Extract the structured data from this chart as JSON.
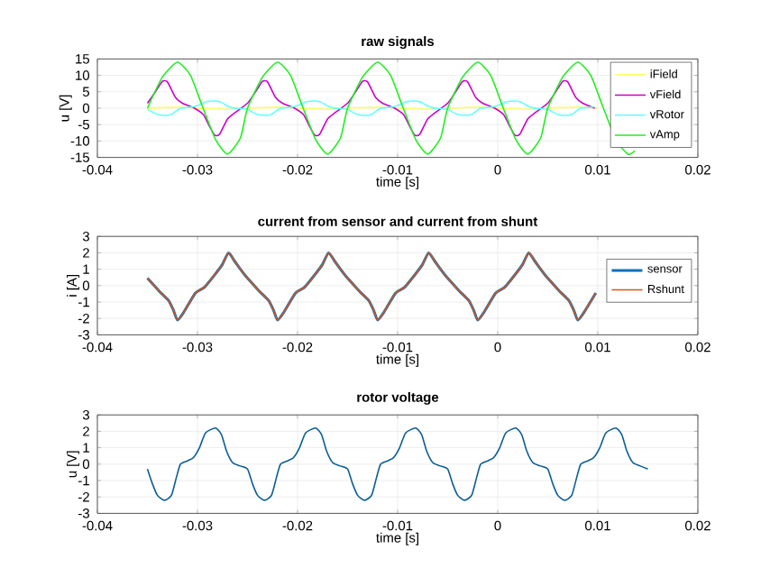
{
  "chart_data": [
    {
      "type": "line",
      "title": "raw signals",
      "xlabel": "time [s]",
      "ylabel": "u [V]",
      "xlim": [
        -0.04,
        0.02
      ],
      "xticks": [
        -0.04,
        -0.03,
        -0.02,
        -0.01,
        0,
        0.01,
        0.02
      ],
      "ylim": [
        -15,
        15
      ],
      "yticks": [
        -15,
        -10,
        -5,
        0,
        5,
        10,
        15
      ],
      "grid": true,
      "legend": "top right",
      "series": [
        {
          "name": "iField",
          "color": "#ffff66",
          "x": [
            -0.035,
            -0.032,
            -0.03,
            -0.027,
            -0.025,
            -0.022,
            -0.02,
            -0.017,
            -0.015,
            -0.012,
            -0.01,
            -0.007,
            -0.005,
            -0.002,
            0,
            0.003,
            0.005,
            0.008,
            0.01
          ],
          "values": [
            0,
            0.3,
            0,
            -0.3,
            0,
            0.3,
            0,
            -0.3,
            0,
            0.3,
            0,
            -0.3,
            0,
            0.3,
            0,
            -0.3,
            0,
            0.3,
            0
          ]
        },
        {
          "name": "vField",
          "color": "#cc00cc",
          "x": [
            -0.035,
            -0.0342,
            -0.0335,
            -0.033,
            -0.0322,
            -0.0315,
            -0.0303,
            -0.0294,
            -0.0288,
            -0.0283,
            -0.0278,
            -0.027,
            -0.0263,
            -0.025,
            -0.0242,
            -0.0235,
            -0.023,
            -0.0222,
            -0.0215,
            -0.0203,
            -0.0194,
            -0.0188,
            -0.0183,
            -0.0178,
            -0.017,
            -0.0163,
            -0.015,
            -0.0142,
            -0.0135,
            -0.013,
            -0.0122,
            -0.0115,
            -0.0103,
            -0.0094,
            -0.0088,
            -0.0083,
            -0.0078,
            -0.007,
            -0.0063,
            -0.005,
            -0.0042,
            -0.0035,
            -0.003,
            -0.0022,
            -0.0015,
            -0.0003,
            0.0006,
            0.0012,
            0.0017,
            0.0022,
            0.003,
            0.0037,
            0.005,
            0.0058,
            0.0065,
            0.007,
            0.0078,
            0.0085,
            0.0097
          ],
          "values": [
            1.5,
            5,
            8.2,
            8,
            3.3,
            1.5,
            0,
            -2,
            -5.5,
            -8.2,
            -8,
            -3.3,
            -1.5,
            1.5,
            5,
            8.2,
            8,
            3.3,
            1.5,
            0,
            -2,
            -5.5,
            -8.2,
            -8,
            -3.3,
            -1.5,
            1.5,
            5,
            8.2,
            8,
            3.3,
            1.5,
            0,
            -2,
            -5.5,
            -8.2,
            -8,
            -3.3,
            -1.5,
            1.5,
            5,
            8.2,
            8,
            3.3,
            1.5,
            0,
            -2,
            -5.5,
            -8.2,
            -8,
            -3.3,
            -1.5,
            1.5,
            5,
            8.2,
            8,
            3.3,
            1.5,
            0
          ]
        },
        {
          "name": "vRotor",
          "color": "#66ffff",
          "x": [
            -0.035,
            -0.0345,
            -0.034,
            -0.0333,
            -0.0326,
            -0.0321,
            -0.0317,
            -0.031,
            -0.0304,
            -0.0298,
            -0.0292,
            -0.0282,
            -0.0276,
            -0.0271,
            -0.0265,
            -0.0258,
            -0.025,
            -0.0245,
            -0.024,
            -0.0233,
            -0.0226,
            -0.0221,
            -0.0217,
            -0.021,
            -0.0204,
            -0.0198,
            -0.0192,
            -0.0182,
            -0.0176,
            -0.0171,
            -0.0165,
            -0.0158,
            -0.015,
            -0.0145,
            -0.014,
            -0.0133,
            -0.0126,
            -0.0121,
            -0.0117,
            -0.011,
            -0.0104,
            -0.0098,
            -0.0092,
            -0.0082,
            -0.0076,
            -0.0071,
            -0.0065,
            -0.0058,
            -0.005,
            -0.0045,
            -0.004,
            -0.0033,
            -0.0026,
            -0.0021,
            -0.0017,
            -0.001,
            -0.0004,
            0.0002,
            0.0008,
            0.0018,
            0.0024,
            0.0029,
            0.0035,
            0.0042,
            0.005,
            0.0055,
            0.006,
            0.0067,
            0.0074,
            0.0079,
            0.0083,
            0.009,
            0.0096
          ],
          "values": [
            -0.3,
            -1.2,
            -1.9,
            -2.2,
            -1.9,
            -0.8,
            0,
            0.2,
            0.4,
            1,
            1.9,
            2.2,
            1.8,
            0.8,
            0.1,
            -0.1,
            -0.3,
            -1.2,
            -1.9,
            -2.2,
            -1.9,
            -0.8,
            0,
            0.2,
            0.4,
            1,
            1.9,
            2.2,
            1.8,
            0.8,
            0.1,
            -0.1,
            -0.3,
            -1.2,
            -1.9,
            -2.2,
            -1.9,
            -0.8,
            0,
            0.2,
            0.4,
            1,
            1.9,
            2.2,
            1.8,
            0.8,
            0.1,
            -0.1,
            -0.3,
            -1.2,
            -1.9,
            -2.2,
            -1.9,
            -0.8,
            0,
            0.2,
            0.4,
            1,
            1.9,
            2.2,
            1.8,
            0.8,
            0.1,
            -0.1,
            -0.3,
            -1.2,
            -1.9,
            -2.2,
            -1.9,
            -0.8,
            0,
            0.2,
            0.4
          ]
        },
        {
          "name": "vAmp",
          "color": "#22ee22",
          "x": [
            -0.035,
            -0.0335,
            -0.032,
            -0.0307,
            -0.0295,
            -0.0282,
            -0.027,
            -0.0257,
            -0.025,
            -0.0235,
            -0.022,
            -0.0207,
            -0.0195,
            -0.0182,
            -0.017,
            -0.0157,
            -0.015,
            -0.0135,
            -0.012,
            -0.0107,
            -0.0095,
            -0.0082,
            -0.007,
            -0.0057,
            -0.005,
            -0.0035,
            -0.002,
            -0.0007,
            0.0005,
            0.0018,
            0.003,
            0.0043,
            0.005,
            0.0065,
            0.008,
            0.0093,
            0.0105,
            0.0118,
            0.013,
            0.0137
          ],
          "values": [
            0,
            9.5,
            14,
            10,
            0.5,
            -9.5,
            -14,
            -9,
            0,
            9.5,
            14,
            10,
            0.5,
            -9.5,
            -14,
            -9,
            0,
            9.5,
            14,
            10,
            0.5,
            -9.5,
            -14,
            -9,
            0,
            9.5,
            14,
            10,
            0.5,
            -9.5,
            -14,
            -9,
            0,
            9.5,
            14,
            10,
            0.5,
            -9.5,
            -14,
            -13
          ]
        }
      ]
    },
    {
      "type": "line",
      "title": "current from sensor and current from shunt",
      "xlabel": "time [s]",
      "ylabel": "i [A]",
      "xlim": [
        -0.04,
        0.02
      ],
      "xticks": [
        -0.04,
        -0.03,
        -0.02,
        -0.01,
        0,
        0.01,
        0.02
      ],
      "ylim": [
        -3,
        3
      ],
      "yticks": [
        -3,
        -2,
        -1,
        0,
        1,
        2,
        3
      ],
      "grid": true,
      "legend": "right",
      "series": [
        {
          "name": "sensor",
          "color": "#0072bd",
          "x": [
            -0.035,
            -0.0338,
            -0.0329,
            -0.0324,
            -0.032,
            -0.0314,
            -0.0302,
            -0.0293,
            -0.0281,
            -0.0275,
            -0.0269,
            -0.0263,
            -0.0254,
            -0.025,
            -0.0238,
            -0.0229,
            -0.0224,
            -0.022,
            -0.0214,
            -0.0202,
            -0.0193,
            -0.0181,
            -0.0175,
            -0.0169,
            -0.0163,
            -0.0154,
            -0.015,
            -0.0138,
            -0.0129,
            -0.0124,
            -0.012,
            -0.0114,
            -0.0102,
            -0.0093,
            -0.0081,
            -0.0075,
            -0.0069,
            -0.0063,
            -0.0054,
            -0.005,
            -0.0038,
            -0.0029,
            -0.0024,
            -0.002,
            -0.0014,
            -0.0002,
            0.0007,
            0.0019,
            0.0025,
            0.0031,
            0.0037,
            0.0046,
            0.005,
            0.0062,
            0.0071,
            0.0076,
            0.008,
            0.0086,
            0.0098
          ],
          "values": [
            0.45,
            -0.35,
            -0.9,
            -1.5,
            -2.1,
            -1.65,
            -0.45,
            -0.1,
            0.8,
            1.3,
            2,
            1.5,
            0.75,
            0.45,
            -0.35,
            -0.9,
            -1.5,
            -2.1,
            -1.65,
            -0.45,
            -0.1,
            0.8,
            1.3,
            2,
            1.5,
            0.75,
            0.45,
            -0.35,
            -0.9,
            -1.5,
            -2.1,
            -1.65,
            -0.45,
            -0.1,
            0.8,
            1.3,
            2,
            1.5,
            0.75,
            0.45,
            -0.35,
            -0.9,
            -1.5,
            -2.1,
            -1.65,
            -0.45,
            -0.1,
            0.8,
            1.3,
            2,
            1.5,
            0.75,
            0.45,
            -0.35,
            -0.9,
            -1.5,
            -2.1,
            -1.65,
            -0.45
          ]
        },
        {
          "name": "Rshunt",
          "color": "#d95319",
          "x": [
            -0.035,
            -0.0338,
            -0.0329,
            -0.0324,
            -0.032,
            -0.0314,
            -0.0302,
            -0.0293,
            -0.0281,
            -0.0275,
            -0.0269,
            -0.0263,
            -0.0254,
            -0.025,
            -0.0238,
            -0.0229,
            -0.0224,
            -0.022,
            -0.0214,
            -0.0202,
            -0.0193,
            -0.0181,
            -0.0175,
            -0.0169,
            -0.0163,
            -0.0154,
            -0.015,
            -0.0138,
            -0.0129,
            -0.0124,
            -0.012,
            -0.0114,
            -0.0102,
            -0.0093,
            -0.0081,
            -0.0075,
            -0.0069,
            -0.0063,
            -0.0054,
            -0.005,
            -0.0038,
            -0.0029,
            -0.0024,
            -0.002,
            -0.0014,
            -0.0002,
            0.0007,
            0.0019,
            0.0025,
            0.0031,
            0.0037,
            0.0046,
            0.005,
            0.0062,
            0.0071,
            0.0076,
            0.008,
            0.0086,
            0.0098
          ],
          "values": [
            0.45,
            -0.35,
            -0.9,
            -1.5,
            -2.1,
            -1.65,
            -0.45,
            -0.1,
            0.8,
            1.3,
            2,
            1.5,
            0.75,
            0.45,
            -0.35,
            -0.9,
            -1.5,
            -2.1,
            -1.65,
            -0.45,
            -0.1,
            0.8,
            1.3,
            2,
            1.5,
            0.75,
            0.45,
            -0.35,
            -0.9,
            -1.5,
            -2.1,
            -1.65,
            -0.45,
            -0.1,
            0.8,
            1.3,
            2,
            1.5,
            0.75,
            0.45,
            -0.35,
            -0.9,
            -1.5,
            -2.1,
            -1.65,
            -0.45,
            -0.1,
            0.8,
            1.3,
            2,
            1.5,
            0.75,
            0.45,
            -0.35,
            -0.9,
            -1.5,
            -2.1,
            -1.65,
            -0.45
          ]
        }
      ]
    },
    {
      "type": "line",
      "title": "rotor voltage",
      "xlabel": "time [s]",
      "ylabel": "u [V]",
      "xlim": [
        -0.04,
        0.02
      ],
      "xticks": [
        -0.04,
        -0.03,
        -0.02,
        -0.01,
        0,
        0.01,
        0.02
      ],
      "ylim": [
        -3,
        3
      ],
      "yticks": [
        -3,
        -2,
        -1,
        0,
        1,
        2,
        3
      ],
      "grid": true,
      "series": [
        {
          "color": "#0b5e96",
          "x": [
            -0.035,
            -0.0345,
            -0.034,
            -0.0333,
            -0.0326,
            -0.0321,
            -0.0317,
            -0.031,
            -0.0304,
            -0.0298,
            -0.0292,
            -0.0282,
            -0.0276,
            -0.0271,
            -0.0265,
            -0.0258,
            -0.025,
            -0.0245,
            -0.024,
            -0.0233,
            -0.0226,
            -0.0221,
            -0.0217,
            -0.021,
            -0.0204,
            -0.0198,
            -0.0192,
            -0.0182,
            -0.0176,
            -0.0171,
            -0.0165,
            -0.0158,
            -0.015,
            -0.0145,
            -0.014,
            -0.0133,
            -0.0126,
            -0.0121,
            -0.0117,
            -0.011,
            -0.0104,
            -0.0098,
            -0.0092,
            -0.0082,
            -0.0076,
            -0.0071,
            -0.0065,
            -0.0058,
            -0.005,
            -0.0045,
            -0.004,
            -0.0033,
            -0.0026,
            -0.0021,
            -0.0017,
            -0.001,
            -0.0004,
            0.0002,
            0.0008,
            0.0018,
            0.0024,
            0.0029,
            0.0035,
            0.0042,
            0.005,
            0.0055,
            0.006,
            0.0067,
            0.0074,
            0.0079,
            0.0083,
            0.009,
            0.0096,
            0.0102,
            0.0108,
            0.0118,
            0.0124,
            0.0129,
            0.0135,
            0.0142,
            0.015
          ],
          "values": [
            -0.3,
            -1.2,
            -1.9,
            -2.2,
            -1.9,
            -0.8,
            0,
            0.2,
            0.4,
            1,
            1.9,
            2.2,
            1.8,
            0.8,
            0.1,
            -0.1,
            -0.3,
            -1.2,
            -1.9,
            -2.2,
            -1.9,
            -0.8,
            0,
            0.2,
            0.4,
            1,
            1.9,
            2.2,
            1.8,
            0.8,
            0.1,
            -0.1,
            -0.3,
            -1.2,
            -1.9,
            -2.2,
            -1.9,
            -0.8,
            0,
            0.2,
            0.4,
            1,
            1.9,
            2.2,
            1.8,
            0.8,
            0.1,
            -0.1,
            -0.3,
            -1.2,
            -1.9,
            -2.2,
            -1.9,
            -0.8,
            0,
            0.2,
            0.4,
            1,
            1.9,
            2.2,
            1.8,
            0.8,
            0.1,
            -0.1,
            -0.3,
            -1.2,
            -1.9,
            -2.2,
            -1.9,
            -0.8,
            0,
            0.2,
            0.4,
            1,
            1.9,
            2.2,
            1.8,
            0.8,
            0.1,
            -0.1,
            -0.3
          ]
        }
      ]
    }
  ]
}
